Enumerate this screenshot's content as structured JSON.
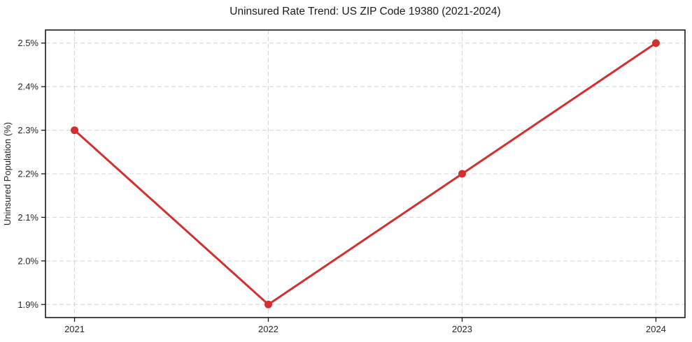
{
  "figure": {
    "title": "Uninsured Rate Trend: US ZIP Code 19380 (2021-2024)"
  },
  "chart_data": {
    "type": "line",
    "title": "Uninsured Rate Trend: US ZIP Code 19380 (2021-2024)",
    "xlabel": "",
    "ylabel": "Uninsured Population (%)",
    "categories": [
      "2021",
      "2022",
      "2023",
      "2024"
    ],
    "series": [
      {
        "name": "Uninsured Population (%)",
        "values": [
          2.3,
          1.9,
          2.2,
          2.5
        ]
      }
    ],
    "yticks": [
      1.9,
      2.0,
      2.1,
      2.2,
      2.3,
      2.4,
      2.5
    ],
    "ytick_labels": [
      "1.9%",
      "2.0%",
      "2.1%",
      "2.2%",
      "2.3%",
      "2.4%",
      "2.5%"
    ],
    "ylim": [
      1.87,
      2.53
    ],
    "xlim": [
      -0.15,
      3.15
    ],
    "grid": true,
    "grid_style": "dashed",
    "legend_position": "none",
    "marker": "circle",
    "colors": {
      "line": "#d32f2f",
      "marker": "#d32f2f",
      "grid": "#cfcfcf",
      "frame": "#1a1a1a",
      "tick": "#1a1a1a",
      "text": "#262626",
      "background": "#ffffff"
    }
  }
}
